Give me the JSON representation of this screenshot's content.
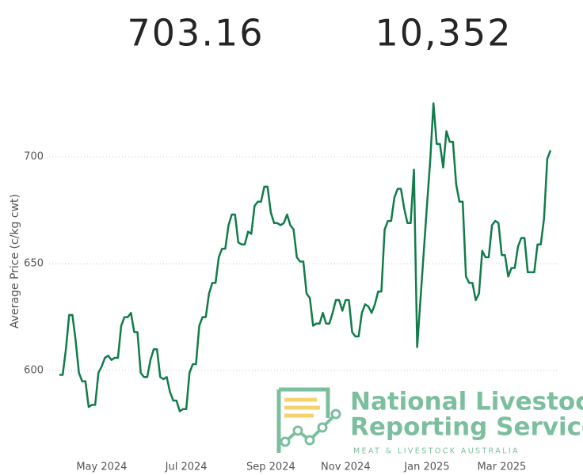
{
  "kpis": [
    "703.16",
    "10,352"
  ],
  "logo": {
    "line1": "National Livestock",
    "line2": "Reporting Service",
    "tagline": "MEAT & LIVESTOCK AUSTRALIA"
  },
  "chart_data": {
    "type": "line",
    "y_label": "Average Price (c/kg cwt)",
    "color": "#107c4a",
    "grid": true,
    "ylim": [
      566,
      730
    ],
    "yticks": [
      600,
      650,
      700
    ],
    "categories": [
      null,
      null,
      null,
      null,
      null,
      null,
      null,
      null,
      null,
      null,
      null,
      null,
      null,
      "May 2024",
      null,
      null,
      null,
      null,
      null,
      null,
      null,
      null,
      null,
      null,
      null,
      null,
      null,
      null,
      null,
      null,
      null,
      null,
      null,
      null,
      null,
      null,
      null,
      null,
      null,
      "Jul 2024",
      null,
      null,
      null,
      null,
      null,
      null,
      null,
      null,
      null,
      null,
      null,
      null,
      null,
      null,
      null,
      null,
      null,
      null,
      null,
      null,
      null,
      null,
      null,
      null,
      null,
      "Sep 2024",
      null,
      null,
      null,
      null,
      null,
      null,
      null,
      null,
      null,
      null,
      null,
      null,
      null,
      null,
      null,
      null,
      null,
      null,
      null,
      null,
      null,
      null,
      "Nov 2024",
      null,
      null,
      null,
      null,
      null,
      null,
      null,
      null,
      null,
      null,
      null,
      null,
      null,
      null,
      null,
      null,
      null,
      null,
      null,
      null,
      null,
      null,
      null,
      null,
      "Jan 2025",
      null,
      null,
      null,
      null,
      null,
      null,
      null,
      null,
      null,
      null,
      null,
      null,
      null,
      null,
      null,
      null,
      null,
      null,
      null,
      null,
      null,
      null,
      "Mar 2025",
      null,
      null,
      null,
      null,
      null,
      null,
      null,
      null,
      null,
      null,
      null,
      null,
      null,
      null,
      null
    ],
    "values": [
      598,
      598,
      610,
      626,
      626,
      614,
      599,
      595,
      595,
      583,
      584,
      584,
      599,
      602,
      606,
      607,
      605,
      606,
      606,
      621,
      625,
      625,
      627,
      618,
      618,
      599,
      597,
      597,
      605,
      610,
      610,
      597,
      596,
      597,
      590,
      586,
      586,
      581,
      582,
      582,
      599,
      603,
      603,
      621,
      625,
      625,
      636,
      641,
      641,
      653,
      657,
      657,
      668,
      673,
      673,
      660,
      659,
      659,
      665,
      664,
      677,
      679,
      679,
      686,
      686,
      674,
      669,
      669,
      668,
      669,
      673,
      668,
      666,
      653,
      651,
      651,
      636,
      634,
      621,
      622,
      622,
      627,
      622,
      622,
      627,
      633,
      633,
      628,
      633,
      633,
      618,
      616,
      616,
      627,
      631,
      630,
      627,
      631,
      637,
      637,
      666,
      670,
      670,
      681,
      685,
      685,
      676,
      669,
      669,
      694,
      611,
      633,
      655,
      677,
      698,
      725,
      706,
      706,
      695,
      712,
      707,
      707,
      687,
      679,
      679,
      644,
      641,
      641,
      633,
      636,
      656,
      653,
      653,
      668,
      670,
      669,
      654,
      654,
      644,
      648,
      648,
      658,
      662,
      662,
      646,
      646,
      646,
      659,
      659,
      671,
      699,
      703
    ]
  }
}
